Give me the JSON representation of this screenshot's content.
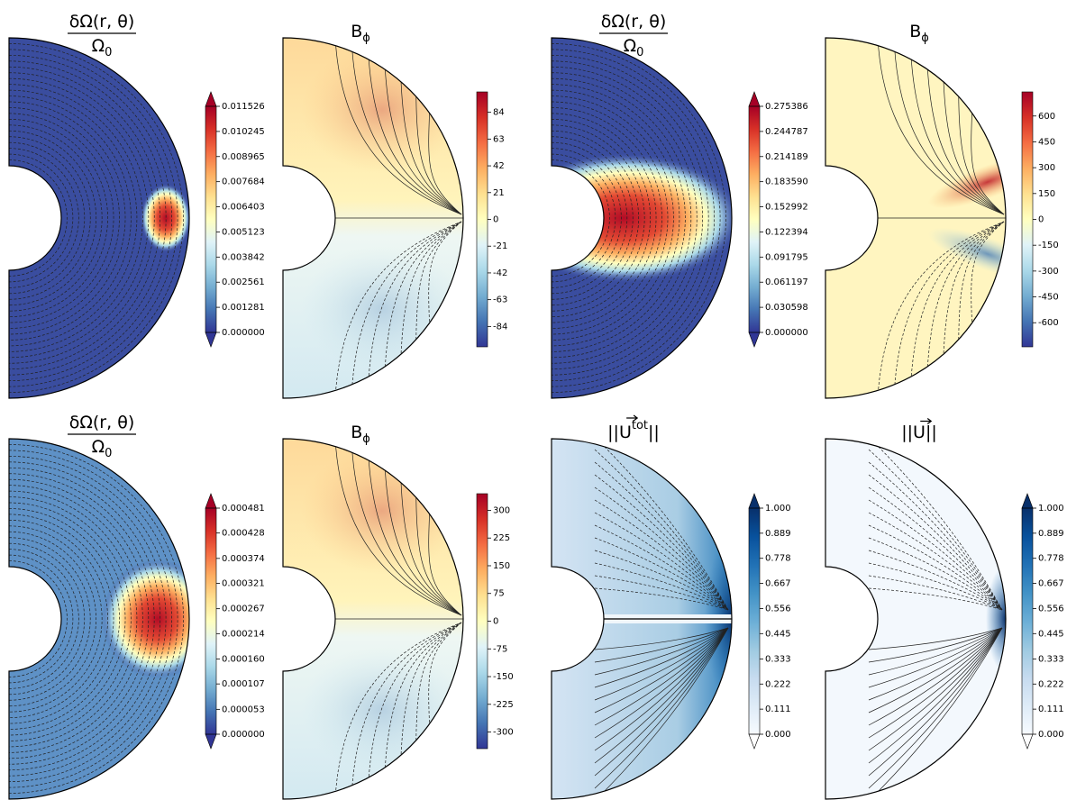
{
  "chart_data": [
    {
      "type": "contour",
      "cmap": "RdYlBu_r",
      "extend": "both",
      "title": [
        {
          "text": "δΩ(r, θ)"
        }
      ],
      "title_under": [
        {
          "text": "Ω"
        },
        {
          "text": "0",
          "shift": "sub"
        }
      ],
      "clim": [
        0,
        0.011526
      ],
      "cticks": [
        {
          "value": 0,
          "label": "0.000000"
        },
        0.001281,
        0.002561,
        0.003842,
        0.005123,
        0.006403,
        0.007684,
        0.008965,
        0.010245,
        0.011526
      ]
    },
    {
      "type": "contour",
      "cmap": "RdYlBu_r",
      "extend": "neither",
      "title": [
        {
          "text": "B"
        },
        {
          "text": "ϕ",
          "shift": "sub"
        }
      ],
      "clim": [
        -100,
        100
      ],
      "cticks": [
        -84,
        -63,
        -42,
        -21,
        0,
        21,
        42,
        63,
        84
      ]
    },
    {
      "type": "contour",
      "cmap": "RdYlBu_r",
      "extend": "both",
      "title": [
        {
          "text": "δΩ(r, θ)"
        }
      ],
      "title_under": [
        {
          "text": "Ω"
        },
        {
          "text": "0",
          "shift": "sub"
        }
      ],
      "clim": [
        0,
        0.275386
      ],
      "cticks": [
        {
          "value": 0,
          "label": "0.000000"
        },
        0.030598,
        0.061197,
        0.091795,
        0.122394,
        0.152992,
        {
          "value": 0.18359,
          "label": "0.183590"
        },
        0.214189,
        0.244787,
        0.275386
      ]
    },
    {
      "type": "contour",
      "cmap": "RdYlBu_r",
      "extend": "neither",
      "title": [
        {
          "text": "B"
        },
        {
          "text": "ϕ",
          "shift": "sub"
        }
      ],
      "clim": [
        -740,
        740
      ],
      "cticks": [
        -600,
        -450,
        -300,
        -150,
        0,
        150,
        300,
        450,
        600
      ]
    },
    {
      "type": "contour",
      "cmap": "RdYlBu_r",
      "extend": "both",
      "title": [
        {
          "text": "δΩ(r, θ)"
        }
      ],
      "title_under": [
        {
          "text": "Ω"
        },
        {
          "text": "0",
          "shift": "sub"
        }
      ],
      "clim": [
        0,
        0.000481
      ],
      "cticks": [
        {
          "value": 0,
          "label": "0.000000"
        },
        5.3e-05,
        0.000107,
        {
          "value": 0.00016,
          "label": "0.000160"
        },
        0.000214,
        0.000267,
        0.000321,
        0.000374,
        0.000428,
        0.000481
      ]
    },
    {
      "type": "contour",
      "cmap": "RdYlBu_r",
      "extend": "neither",
      "title": [
        {
          "text": "B"
        },
        {
          "text": "ϕ",
          "shift": "sub"
        }
      ],
      "clim": [
        -345,
        345
      ],
      "cticks": [
        -300,
        -225,
        -150,
        -75,
        0,
        75,
        150,
        225,
        300
      ]
    },
    {
      "type": "contour",
      "cmap": "Blues",
      "extend": "both",
      "title": [
        {
          "text": "||U",
          "arrow": true
        },
        {
          "text": "tot",
          "shift": "super"
        },
        {
          "text": "||"
        }
      ],
      "clim": [
        0,
        1
      ],
      "cticks": [
        {
          "value": 0,
          "label": "0.000"
        },
        0.111,
        0.222,
        0.333,
        0.445,
        0.556,
        0.667,
        0.778,
        0.889,
        {
          "value": 1,
          "label": "1.000"
        }
      ]
    },
    {
      "type": "contour",
      "cmap": "Blues",
      "extend": "both",
      "title": [
        {
          "text": "||U",
          "arrow": true
        },
        {
          "text": "||"
        }
      ],
      "clim": [
        0,
        1
      ],
      "cticks": [
        {
          "value": 0,
          "label": "0.000"
        },
        0.111,
        0.222,
        0.333,
        0.445,
        0.556,
        0.667,
        0.778,
        0.889,
        {
          "value": 1,
          "label": "1.000"
        }
      ]
    }
  ]
}
